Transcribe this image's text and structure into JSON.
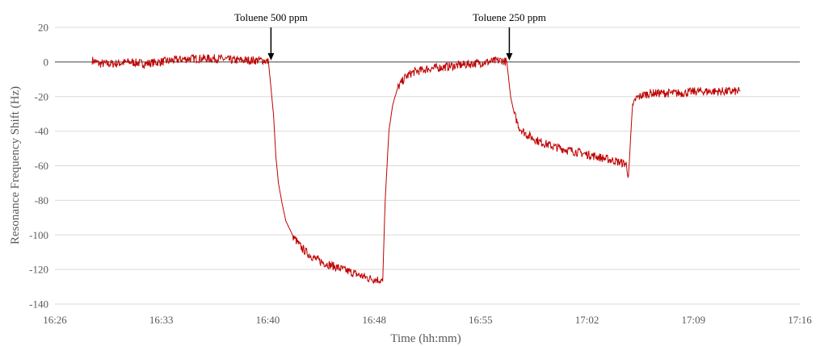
{
  "chart_data": {
    "type": "line",
    "title": "",
    "xlabel": "Time (hh:mm)",
    "ylabel": "Resonance Frequency Shift (Hz)",
    "xlim": [
      "16:26",
      "17:16"
    ],
    "ylim": [
      -140,
      20
    ],
    "grid": true,
    "x_ticks": [
      "16:26",
      "16:33",
      "16:40",
      "16:48",
      "16:55",
      "17:02",
      "17:09",
      "17:16"
    ],
    "y_ticks": [
      20,
      0,
      -20,
      -40,
      -60,
      -80,
      -100,
      -120,
      -140
    ],
    "colors": {
      "series": "#c00000"
    },
    "annotations": [
      {
        "text": "Toluene 500 ppm",
        "x": "16:40:30",
        "y": 0
      },
      {
        "text": "Toluene 250 ppm",
        "x": "16:56:30",
        "y": 0
      }
    ],
    "series": [
      {
        "x": [
          "16:28:30",
          "16:29:00",
          "16:30:00",
          "16:31:00",
          "16:32:00",
          "16:33:00",
          "16:34:00",
          "16:35:00",
          "16:36:00",
          "16:37:00",
          "16:38:00",
          "16:39:00",
          "16:40:00",
          "16:40:20",
          "16:40:40",
          "16:40:50",
          "16:41:00",
          "16:41:15",
          "16:41:30",
          "16:42:00",
          "16:42:30",
          "16:43:00",
          "16:43:30",
          "16:44:00",
          "16:45:00",
          "16:46:00",
          "16:47:00",
          "16:47:45",
          "16:48:00",
          "16:48:10",
          "16:48:25",
          "16:48:40",
          "16:49:00",
          "16:49:30",
          "16:50:00",
          "16:51:00",
          "16:52:00",
          "16:53:00",
          "16:54:00",
          "16:55:00",
          "16:56:00",
          "16:56:20",
          "16:56:35",
          "16:56:50",
          "16:57:10",
          "16:57:40",
          "16:58:30",
          "16:59:30",
          "17:00:30",
          "17:01:30",
          "17:02:30",
          "17:03:30",
          "17:04:20",
          "17:04:30",
          "17:04:45",
          "17:05:00",
          "17:05:30",
          "17:06:00",
          "17:07:00",
          "17:08:00",
          "17:09:00",
          "17:10:00",
          "17:11:00",
          "17:12:00"
        ],
        "values": [
          1,
          -1,
          -1,
          0,
          -1,
          0,
          1,
          2,
          2,
          2,
          1,
          1,
          1,
          0,
          -30,
          -55,
          -70,
          -82,
          -92,
          -101,
          -107,
          -111,
          -114,
          -116,
          -119,
          -122,
          -125,
          -126,
          -127,
          -80,
          -40,
          -25,
          -15,
          -9,
          -6,
          -4,
          -3,
          -2,
          -1,
          0,
          1,
          0,
          -20,
          -30,
          -38,
          -42,
          -46,
          -49,
          -51,
          -53,
          -55,
          -57,
          -59,
          -66,
          -27,
          -21,
          -19,
          -18,
          -18,
          -18,
          -17,
          -17,
          -17,
          -17
        ]
      }
    ]
  }
}
